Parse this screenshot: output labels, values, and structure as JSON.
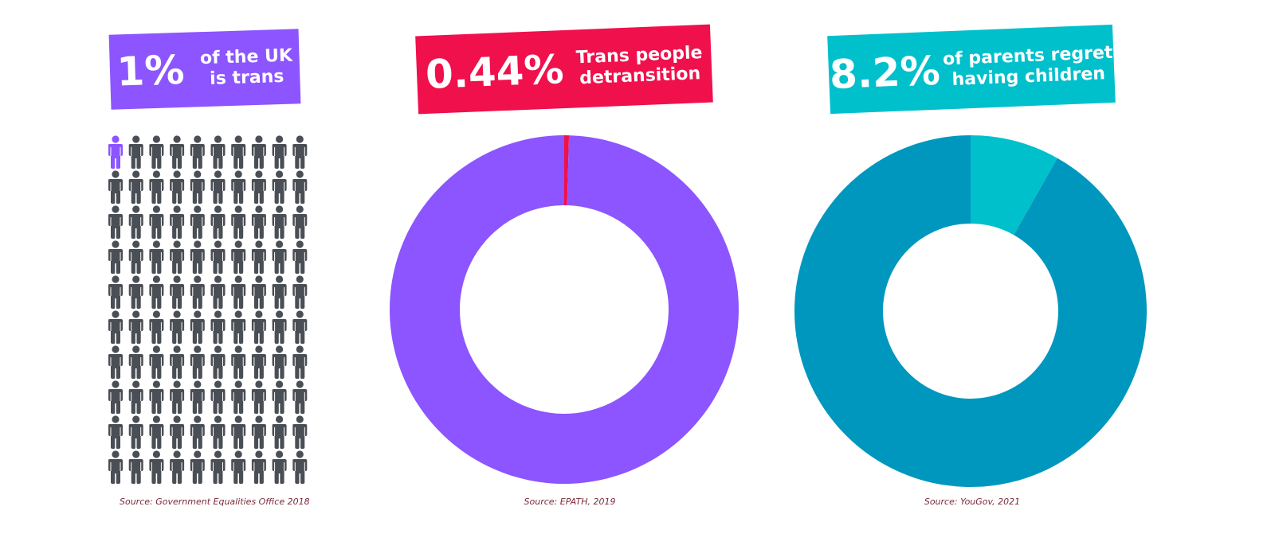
{
  "colors": {
    "purple": "#8c55ff",
    "pink": "#f0104c",
    "cyan": "#00c0cc",
    "blue": "#0097be",
    "grey": "#4a4e55",
    "source_text": "#7a2a3a"
  },
  "panel1": {
    "big": "1%",
    "caption_line1": "of the UK",
    "caption_line2": "is trans",
    "source": "Source: Government Equalities Office 2018",
    "highlight_color": "purple",
    "icon": "person-icon"
  },
  "panel2": {
    "big": "0.44%",
    "caption_line1": "Trans people",
    "caption_line2": "detransition",
    "source": "Source: EPATH, 2019"
  },
  "panel3": {
    "big": "8.2%",
    "caption_line1": "of parents regret",
    "caption_line2": "having children",
    "source": "Source: YouGov, 2021"
  },
  "chart_data": [
    {
      "type": "waffle",
      "rows": 10,
      "cols": 10,
      "highlighted_count": 1,
      "total": 100,
      "highlighted_percent": 1,
      "title": "1% of the UK is trans"
    },
    {
      "type": "pie",
      "donut": true,
      "title": "0.44% Trans people detransition",
      "slices": [
        {
          "value": 0.44,
          "color": "#f0104c"
        },
        {
          "value": 99.56,
          "color": "#8c55ff"
        }
      ]
    },
    {
      "type": "pie",
      "donut": true,
      "title": "8.2% of parents regret having children",
      "slices": [
        {
          "value": 8.2,
          "color": "#00c0cc"
        },
        {
          "value": 91.8,
          "color": "#0097be"
        }
      ]
    }
  ]
}
